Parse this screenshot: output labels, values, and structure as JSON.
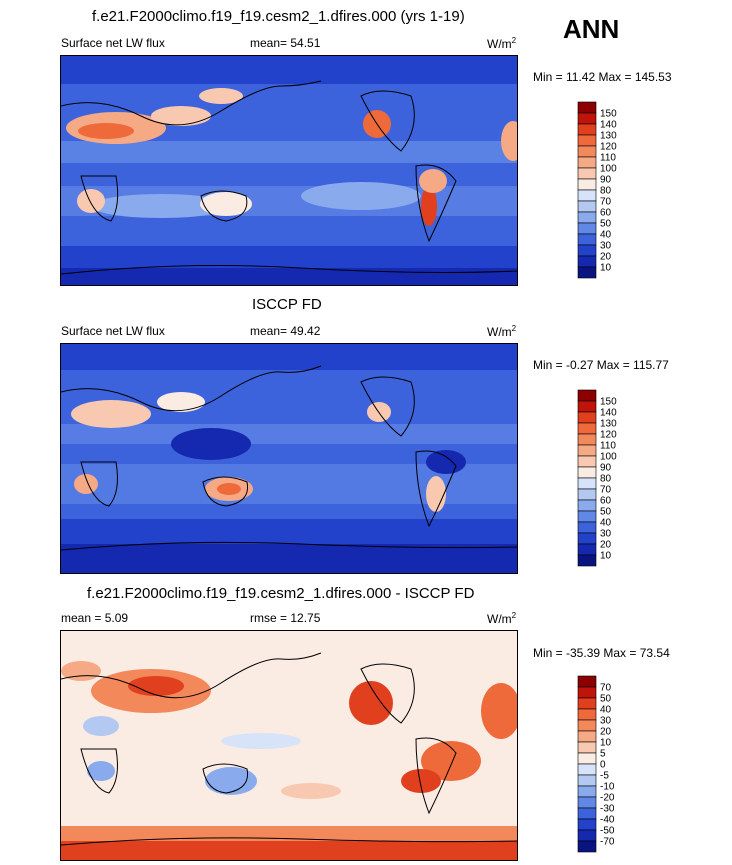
{
  "season": "ANN",
  "panels": [
    {
      "title": "f.e21.F2000climo.f19_f19.cesm2_1.dfires.000 (yrs 1-19)",
      "left_label": "Surface net LW flux",
      "mean_text": "mean=  54.51",
      "right_text": "",
      "units": "W/m",
      "units_sup": "2",
      "minmax": "Min =  11.42 Max = 145.53",
      "colorbar_labels": [
        "150",
        "140",
        "130",
        "120",
        "110",
        "100",
        "90",
        "80",
        "70",
        "60",
        "50",
        "40",
        "30",
        "20",
        "10"
      ],
      "colorbar_colors": [
        "#8b0000",
        "#c0140a",
        "#e0401e",
        "#ef6a3a",
        "#f3885b",
        "#f6a985",
        "#f8c9b0",
        "#faece3",
        "#d6e3f8",
        "#b3c9f2",
        "#8aaaee",
        "#6288e6",
        "#3d63dc",
        "#2342cc",
        "#1528b0",
        "#0a1480"
      ]
    },
    {
      "title": "ISCCP FD",
      "left_label": "Surface net LW flux",
      "mean_text": "mean=  49.42",
      "right_text": "",
      "units": "W/m",
      "units_sup": "2",
      "minmax": "Min =  -0.27 Max = 115.77",
      "colorbar_labels": [
        "150",
        "140",
        "130",
        "120",
        "110",
        "100",
        "90",
        "80",
        "70",
        "60",
        "50",
        "40",
        "30",
        "20",
        "10"
      ],
      "colorbar_colors": [
        "#8b0000",
        "#c0140a",
        "#e0401e",
        "#ef6a3a",
        "#f3885b",
        "#f6a985",
        "#f8c9b0",
        "#faece3",
        "#d6e3f8",
        "#b3c9f2",
        "#8aaaee",
        "#6288e6",
        "#3d63dc",
        "#2342cc",
        "#1528b0",
        "#0a1480"
      ]
    },
    {
      "title": "f.e21.F2000climo.f19_f19.cesm2_1.dfires.000 - ISCCP FD",
      "left_label": "mean =   5.09",
      "mean_text": "rmse =  12.75",
      "right_text": "",
      "units": "W/m",
      "units_sup": "2",
      "minmax": "Min = -35.39 Max =  73.54",
      "colorbar_labels": [
        "70",
        "50",
        "40",
        "30",
        "20",
        "10",
        "5",
        "0",
        "-5",
        "-10",
        "-20",
        "-30",
        "-40",
        "-50",
        "-70"
      ],
      "colorbar_colors": [
        "#8b0000",
        "#c0140a",
        "#e0401e",
        "#ef6a3a",
        "#f3885b",
        "#f6a985",
        "#f8c9b0",
        "#faece3",
        "#d6e3f8",
        "#b3c9f2",
        "#8aaaee",
        "#6288e6",
        "#3d63dc",
        "#2342cc",
        "#1528b0",
        "#0a1480"
      ]
    }
  ],
  "chart_data": [
    {
      "type": "heatmap",
      "title": "f.e21.F2000climo.f19_f19.cesm2_1.dfires.000 (yrs 1-19)",
      "variable": "Surface net LW flux",
      "units": "W/m2",
      "mean": 54.51,
      "min": 11.42,
      "max": 145.53,
      "levels": [
        10,
        20,
        30,
        40,
        50,
        60,
        70,
        80,
        90,
        100,
        110,
        120,
        130,
        140,
        150
      ]
    },
    {
      "type": "heatmap",
      "title": "ISCCP FD",
      "variable": "Surface net LW flux",
      "units": "W/m2",
      "mean": 49.42,
      "min": -0.27,
      "max": 115.77,
      "levels": [
        10,
        20,
        30,
        40,
        50,
        60,
        70,
        80,
        90,
        100,
        110,
        120,
        130,
        140,
        150
      ]
    },
    {
      "type": "heatmap",
      "title": "f.e21.F2000climo.f19_f19.cesm2_1.dfires.000 - ISCCP FD",
      "units": "W/m2",
      "mean": 5.09,
      "rmse": 12.75,
      "min": -35.39,
      "max": 73.54,
      "levels": [
        -70,
        -50,
        -40,
        -30,
        -20,
        -10,
        -5,
        0,
        5,
        10,
        20,
        30,
        40,
        50,
        70
      ]
    }
  ]
}
